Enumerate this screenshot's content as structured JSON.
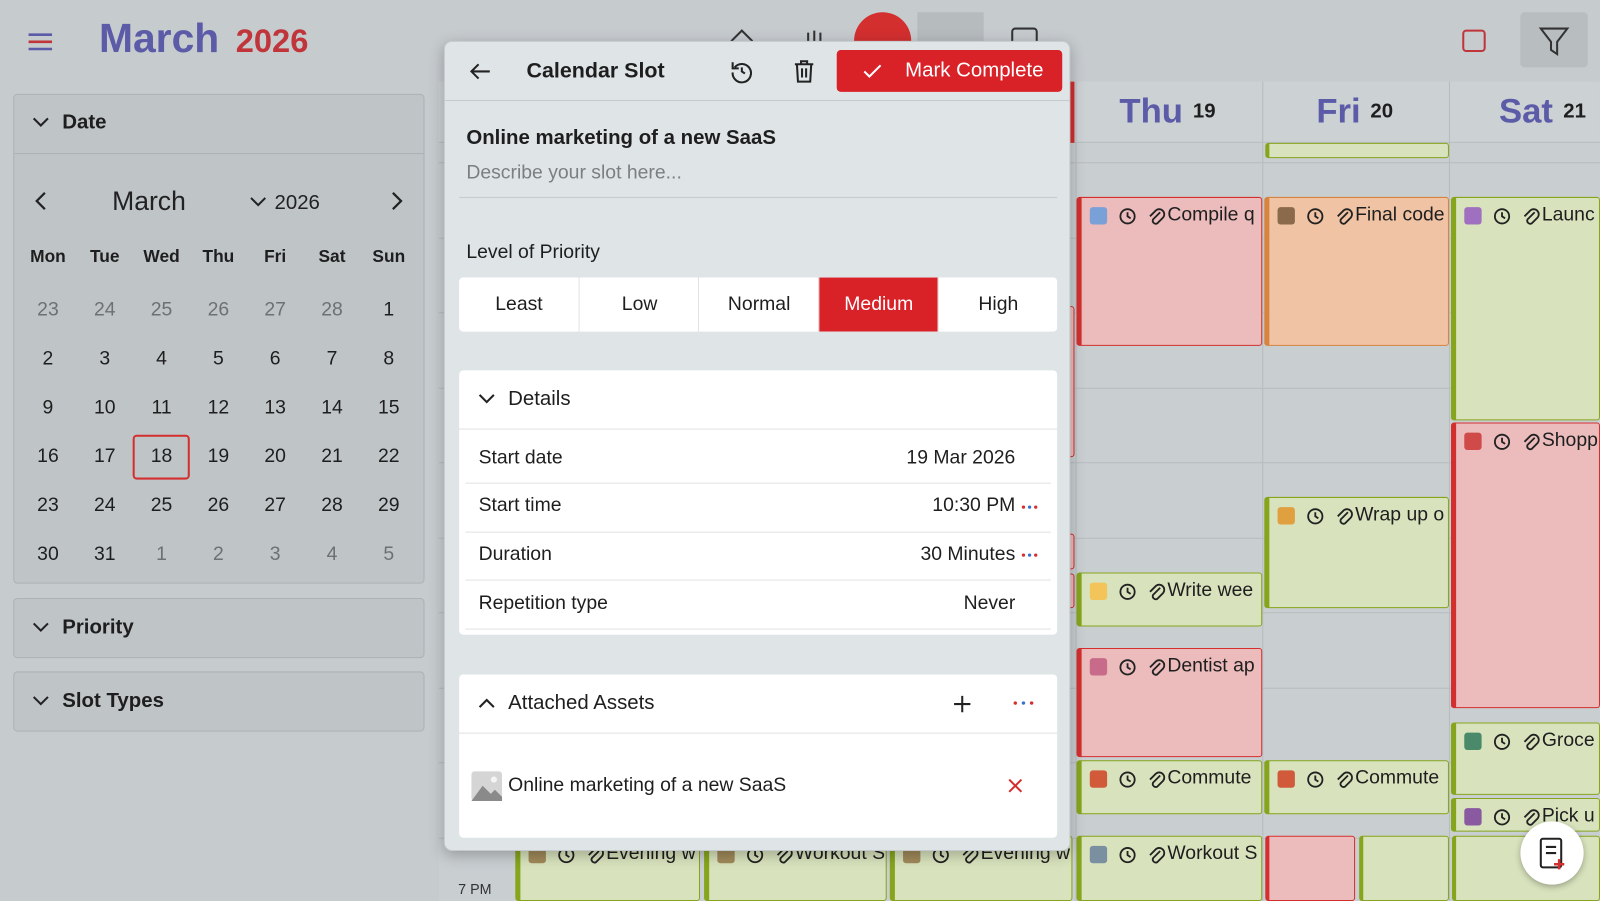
{
  "header": {
    "month": "March",
    "year": "2026"
  },
  "sidebar": {
    "date_section": "Date",
    "calendar": {
      "month": "March",
      "year": "2026",
      "weekdays": [
        "Mon",
        "Tue",
        "Wed",
        "Thu",
        "Fri",
        "Sat",
        "Sun"
      ],
      "weeks": [
        [
          23,
          24,
          25,
          26,
          27,
          28,
          1
        ],
        [
          2,
          3,
          4,
          5,
          6,
          7,
          8
        ],
        [
          9,
          10,
          11,
          12,
          13,
          14,
          15
        ],
        [
          16,
          17,
          18,
          19,
          20,
          21,
          22
        ],
        [
          23,
          24,
          25,
          26,
          27,
          28,
          29
        ],
        [
          30,
          31,
          1,
          2,
          3,
          4,
          5
        ]
      ],
      "selected": 18
    },
    "sections": [
      "Priority",
      "Slot Types"
    ]
  },
  "calendar": {
    "days": [
      {
        "name": "Thu",
        "number": 19
      },
      {
        "name": "Fri",
        "number": 20
      },
      {
        "name": "Sat",
        "number": 21
      }
    ],
    "time_label": "7 PM",
    "events": [
      {
        "title": "Compile q",
        "color": "#ecbcbc",
        "border": "#d32f2f"
      },
      {
        "title": "Write wee",
        "color": "#d8e3bd",
        "border": "#86a51c"
      },
      {
        "title": "Dentist ap",
        "color": "#ecbcbc",
        "border": "#d32f2f"
      },
      {
        "title": "Commute",
        "color": "#d8e3bd",
        "border": "#86a51c"
      },
      {
        "title": "Workout S",
        "color": "#d8e3bd",
        "border": "#86a51c"
      },
      {
        "title": "Final code",
        "color": "#f0c3a4",
        "border": "#d6843f"
      },
      {
        "title": "Wrap up o",
        "color": "#d8e3bd",
        "border": "#86a51c"
      },
      {
        "title": "Commute",
        "color": "#d8e3bd",
        "border": "#86a51c"
      },
      {
        "title": "Launc",
        "color": "#d8e3bd",
        "border": "#86a51c"
      },
      {
        "title": "Shopp",
        "color": "#ecbcbc",
        "border": "#d32f2f"
      },
      {
        "title": "Groce",
        "color": "#d8e3bd",
        "border": "#86a51c"
      },
      {
        "title": "Pick u",
        "color": "#d8e3bd",
        "border": "#86a51c"
      },
      {
        "title": "Evening w",
        "color": "#d8e3bd",
        "border": "#86a51c"
      },
      {
        "title": "Workout S",
        "color": "#d8e3bd",
        "border": "#86a51c"
      },
      {
        "title": "Evening w",
        "color": "#d8e3bd",
        "border": "#86a51c"
      }
    ]
  },
  "panel": {
    "title": "Calendar Slot",
    "action": "Mark Complete",
    "slot_title": "Online marketing of a new SaaS",
    "description_placeholder": "Describe your slot here...",
    "priority": {
      "label": "Level of Priority",
      "options": [
        "Least",
        "Low",
        "Normal",
        "Medium",
        "High"
      ],
      "selected": "Medium"
    },
    "details": {
      "title": "Details",
      "rows": [
        {
          "label": "Start date",
          "value": "19 Mar 2026"
        },
        {
          "label": "Start time",
          "value": "10:30 PM"
        },
        {
          "label": "Duration",
          "value": "30 Minutes"
        },
        {
          "label": "Repetition type",
          "value": "Never"
        }
      ]
    },
    "assets": {
      "title": "Attached Assets",
      "items": [
        "Online marketing of a new SaaS"
      ]
    }
  }
}
